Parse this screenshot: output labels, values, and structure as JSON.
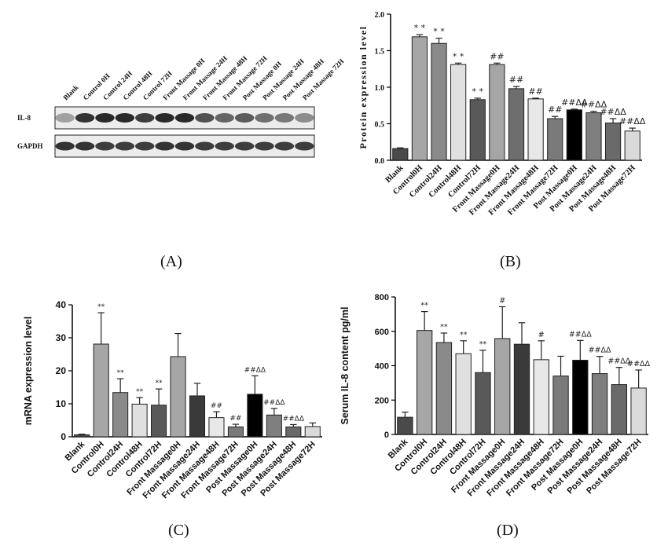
{
  "panels": {
    "A": {
      "label": "(A)"
    },
    "B": {
      "label": "(B)"
    },
    "C": {
      "label": "(C)"
    },
    "D": {
      "label": "(D)"
    }
  },
  "western_blot": {
    "lane_labels": [
      "Blank",
      "Control 0H",
      "Control 24H",
      "Control 48H",
      "Control 72H",
      "Front Massage 0H",
      "Front Massage 24H",
      "Front Massage 48H",
      "Front Massage 72H",
      "Post Massage 0H",
      "Post Massage 24H",
      "Post Massage 48H",
      "Post Massage 72H"
    ],
    "rows": [
      "IL-8",
      "GAPDH"
    ],
    "il8_intensity": [
      0.35,
      0.9,
      0.95,
      0.95,
      0.85,
      0.95,
      0.95,
      0.75,
      0.65,
      0.7,
      0.6,
      0.55,
      0.45
    ],
    "gapdh_intensity": [
      0.9,
      0.9,
      0.85,
      0.85,
      0.85,
      0.9,
      0.9,
      0.85,
      0.85,
      0.85,
      0.85,
      0.85,
      0.85
    ]
  },
  "chart_data": [
    {
      "id": "B",
      "type": "bar",
      "ylabel": "Protein expression level",
      "ylim": [
        0,
        2.0
      ],
      "yticks": [
        "0.0",
        "0.5",
        "1.0",
        "1.5",
        "2.0"
      ],
      "categories": [
        "Blank",
        "Control0H",
        "Control24H",
        "Control48H",
        "Control72H",
        "Front Massage0H",
        "Front Massage24H",
        "Front Massage48H",
        "Front Massage72H",
        "Post Massage0H",
        "Post Massage24H",
        "Post Massage48H",
        "Post Massage72H"
      ],
      "values": [
        0.16,
        1.69,
        1.6,
        1.31,
        0.83,
        1.31,
        0.98,
        0.84,
        0.57,
        0.69,
        0.65,
        0.51,
        0.4
      ],
      "errors": [
        0.01,
        0.03,
        0.07,
        0.02,
        0.02,
        0.02,
        0.03,
        0.01,
        0.03,
        0.01,
        0.02,
        0.06,
        0.04
      ],
      "annotations": [
        "",
        "* *",
        "* *",
        "* *",
        "* *",
        "##",
        "##",
        "##",
        "##",
        "##ΔΔ",
        "##ΔΔ",
        "##ΔΔ",
        "##ΔΔ"
      ],
      "colors": [
        "#4a4a4a",
        "#a6a6a6",
        "#8a8a8a",
        "#e0e0e0",
        "#595959",
        "#a6a6a6",
        "#6e6e6e",
        "#e8e8e8",
        "#7a7a7a",
        "#000000",
        "#7f7f7f",
        "#6a6a6a",
        "#dadada"
      ]
    },
    {
      "id": "C",
      "type": "bar",
      "ylabel": "mRNA expression level",
      "ylim": [
        0,
        40
      ],
      "yticks": [
        "0",
        "10",
        "20",
        "30",
        "40"
      ],
      "categories": [
        "Blank",
        "Control0H",
        "Control24H",
        "Control48H",
        "Control72H",
        "Front Massage0H",
        "Front Massage24H",
        "Front Massage48H",
        "Front Massage72H",
        "Post Massage0H",
        "Post Massage24H",
        "Post Massage48H",
        "Post Massage72H"
      ],
      "values": [
        0.6,
        28.1,
        13.4,
        9.9,
        9.6,
        24.3,
        12.4,
        5.8,
        3.0,
        12.9,
        6.6,
        3.0,
        3.1
      ],
      "errors": [
        0.2,
        9.5,
        4.2,
        2.0,
        4.9,
        7.0,
        3.8,
        1.8,
        0.8,
        5.6,
        2.0,
        0.7,
        1.1
      ],
      "annotations": [
        "",
        "**",
        "**",
        "**",
        "**",
        "",
        "",
        "##",
        "##",
        "##ΔΔ",
        "##ΔΔ",
        "##ΔΔ",
        ""
      ],
      "colors": [
        "#4a4a4a",
        "#a6a6a6",
        "#8a8a8a",
        "#e0e0e0",
        "#595959",
        "#a6a6a6",
        "#3a3a3a",
        "#e8e8e8",
        "#7a7a7a",
        "#000000",
        "#7f7f7f",
        "#6a6a6a",
        "#dadada"
      ]
    },
    {
      "id": "D",
      "type": "bar",
      "ylabel": "Serum IL-8 content pg/ml",
      "ylim": [
        0,
        800
      ],
      "yticks": [
        "0",
        "200",
        "400",
        "600",
        "800"
      ],
      "categories": [
        "Blank",
        "Control0H",
        "Control24H",
        "Control48H",
        "Control72H",
        "Front Massage0H",
        "Front Massage24H",
        "Front Massage48H",
        "Front Massage72H",
        "Post Massage0H",
        "Post Massage24H",
        "Post Massage48H",
        "Post Massage72H"
      ],
      "values": [
        100,
        605,
        535,
        470,
        360,
        558,
        525,
        435,
        340,
        432,
        354,
        290,
        270
      ],
      "errors": [
        30,
        110,
        55,
        75,
        130,
        185,
        125,
        110,
        115,
        115,
        100,
        100,
        105
      ],
      "annotations": [
        "",
        "**",
        "**",
        "**",
        "**",
        "#",
        "",
        "#",
        "",
        "##ΔΔ",
        "##ΔΔ",
        "##ΔΔ",
        "##ΔΔ"
      ],
      "colors": [
        "#4a4a4a",
        "#a6a6a6",
        "#8a8a8a",
        "#e0e0e0",
        "#595959",
        "#a6a6a6",
        "#3a3a3a",
        "#e8e8e8",
        "#7a7a7a",
        "#000000",
        "#7f7f7f",
        "#6a6a6a",
        "#dadada"
      ]
    }
  ]
}
